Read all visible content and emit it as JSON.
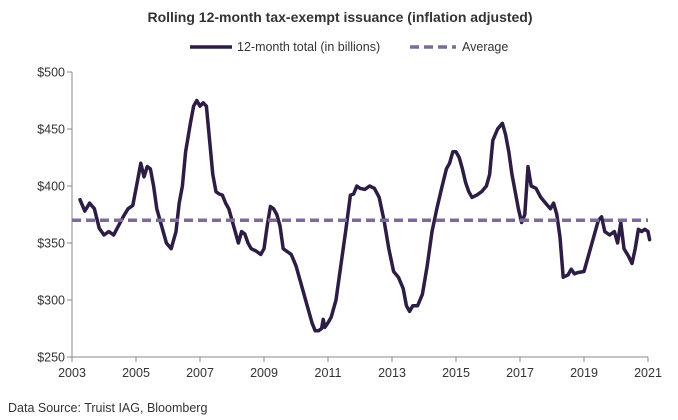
{
  "chart_data": {
    "type": "line",
    "title": "Rolling 12-month tax-exempt issuance (inflation adjusted)",
    "source": "Data Source: Truist IAG, Bloomberg",
    "xlabel": "",
    "ylabel": "",
    "xlim": [
      2003,
      2021
    ],
    "ylim": [
      250,
      500
    ],
    "x_ticks": [
      2003,
      2005,
      2007,
      2009,
      2011,
      2013,
      2015,
      2017,
      2019,
      2021
    ],
    "x_tick_labels": [
      "2003",
      "2005",
      "2007",
      "2009",
      "2011",
      "2013",
      "2015",
      "2017",
      "2019",
      "2021"
    ],
    "y_ticks": [
      250,
      300,
      350,
      400,
      450,
      500
    ],
    "y_tick_labels": [
      "$250",
      "$300",
      "$350",
      "$400",
      "$450",
      "$500"
    ],
    "grid": false,
    "legend_position": "top",
    "series": [
      {
        "name": "12-month total (in billions)",
        "color": "#2d1d45",
        "style": "solid",
        "points": [
          [
            2003.25,
            388
          ],
          [
            2003.4,
            378
          ],
          [
            2003.55,
            385
          ],
          [
            2003.7,
            380
          ],
          [
            2003.85,
            363
          ],
          [
            2004.0,
            357
          ],
          [
            2004.15,
            360
          ],
          [
            2004.3,
            357
          ],
          [
            2004.45,
            365
          ],
          [
            2004.6,
            373
          ],
          [
            2004.75,
            380
          ],
          [
            2004.9,
            383
          ],
          [
            2005.05,
            405
          ],
          [
            2005.15,
            420
          ],
          [
            2005.25,
            408
          ],
          [
            2005.35,
            417
          ],
          [
            2005.45,
            415
          ],
          [
            2005.55,
            400
          ],
          [
            2005.65,
            380
          ],
          [
            2005.75,
            370
          ],
          [
            2005.85,
            360
          ],
          [
            2005.95,
            350
          ],
          [
            2006.1,
            345
          ],
          [
            2006.25,
            360
          ],
          [
            2006.35,
            385
          ],
          [
            2006.45,
            400
          ],
          [
            2006.55,
            430
          ],
          [
            2006.7,
            455
          ],
          [
            2006.8,
            470
          ],
          [
            2006.9,
            475
          ],
          [
            2007.0,
            470
          ],
          [
            2007.1,
            473
          ],
          [
            2007.2,
            470
          ],
          [
            2007.3,
            440
          ],
          [
            2007.4,
            410
          ],
          [
            2007.5,
            395
          ],
          [
            2007.6,
            393
          ],
          [
            2007.7,
            392
          ],
          [
            2007.8,
            385
          ],
          [
            2007.9,
            380
          ],
          [
            2008.0,
            370
          ],
          [
            2008.1,
            360
          ],
          [
            2008.2,
            350
          ],
          [
            2008.3,
            360
          ],
          [
            2008.4,
            358
          ],
          [
            2008.5,
            350
          ],
          [
            2008.6,
            345
          ],
          [
            2008.75,
            343
          ],
          [
            2008.9,
            340
          ],
          [
            2009.0,
            345
          ],
          [
            2009.1,
            365
          ],
          [
            2009.2,
            382
          ],
          [
            2009.3,
            380
          ],
          [
            2009.4,
            375
          ],
          [
            2009.5,
            365
          ],
          [
            2009.6,
            345
          ],
          [
            2009.7,
            343
          ],
          [
            2009.85,
            340
          ],
          [
            2010.0,
            330
          ],
          [
            2010.15,
            315
          ],
          [
            2010.3,
            300
          ],
          [
            2010.4,
            290
          ],
          [
            2010.5,
            280
          ],
          [
            2010.6,
            273
          ],
          [
            2010.7,
            273
          ],
          [
            2010.8,
            275
          ],
          [
            2010.85,
            283
          ],
          [
            2010.9,
            276
          ],
          [
            2011.0,
            280
          ],
          [
            2011.1,
            285
          ],
          [
            2011.25,
            300
          ],
          [
            2011.4,
            330
          ],
          [
            2011.55,
            360
          ],
          [
            2011.7,
            392
          ],
          [
            2011.8,
            393
          ],
          [
            2011.9,
            400
          ],
          [
            2012.0,
            398
          ],
          [
            2012.15,
            397
          ],
          [
            2012.3,
            400
          ],
          [
            2012.45,
            398
          ],
          [
            2012.6,
            390
          ],
          [
            2012.75,
            370
          ],
          [
            2012.9,
            345
          ],
          [
            2013.05,
            325
          ],
          [
            2013.2,
            320
          ],
          [
            2013.35,
            310
          ],
          [
            2013.45,
            295
          ],
          [
            2013.55,
            290
          ],
          [
            2013.65,
            295
          ],
          [
            2013.8,
            295
          ],
          [
            2013.95,
            305
          ],
          [
            2014.1,
            330
          ],
          [
            2014.25,
            360
          ],
          [
            2014.4,
            380
          ],
          [
            2014.55,
            398
          ],
          [
            2014.7,
            415
          ],
          [
            2014.8,
            420
          ],
          [
            2014.9,
            430
          ],
          [
            2015.0,
            430
          ],
          [
            2015.1,
            425
          ],
          [
            2015.2,
            415
          ],
          [
            2015.3,
            403
          ],
          [
            2015.4,
            395
          ],
          [
            2015.5,
            390
          ],
          [
            2015.65,
            392
          ],
          [
            2015.8,
            395
          ],
          [
            2015.95,
            400
          ],
          [
            2016.05,
            410
          ],
          [
            2016.15,
            440
          ],
          [
            2016.3,
            450
          ],
          [
            2016.45,
            455
          ],
          [
            2016.55,
            445
          ],
          [
            2016.65,
            430
          ],
          [
            2016.75,
            410
          ],
          [
            2016.85,
            395
          ],
          [
            2016.95,
            380
          ],
          [
            2017.05,
            368
          ],
          [
            2017.15,
            375
          ],
          [
            2017.25,
            417
          ],
          [
            2017.35,
            400
          ],
          [
            2017.5,
            398
          ],
          [
            2017.65,
            390
          ],
          [
            2017.8,
            385
          ],
          [
            2017.95,
            380
          ],
          [
            2018.05,
            385
          ],
          [
            2018.15,
            375
          ],
          [
            2018.25,
            355
          ],
          [
            2018.35,
            320
          ],
          [
            2018.5,
            322
          ],
          [
            2018.6,
            327
          ],
          [
            2018.7,
            323
          ],
          [
            2018.8,
            324
          ],
          [
            2019.0,
            325
          ],
          [
            2019.15,
            340
          ],
          [
            2019.3,
            355
          ],
          [
            2019.45,
            370
          ],
          [
            2019.55,
            373
          ],
          [
            2019.65,
            360
          ],
          [
            2019.8,
            357
          ],
          [
            2019.95,
            360
          ],
          [
            2020.05,
            350
          ],
          [
            2020.15,
            368
          ],
          [
            2020.25,
            345
          ],
          [
            2020.4,
            338
          ],
          [
            2020.5,
            332
          ],
          [
            2020.6,
            345
          ],
          [
            2020.7,
            362
          ],
          [
            2020.8,
            360
          ],
          [
            2020.9,
            362
          ],
          [
            2021.0,
            360
          ],
          [
            2021.05,
            353
          ]
        ]
      },
      {
        "name": "Average",
        "color": "#7c6a98",
        "style": "dashed",
        "points": [
          [
            2003,
            370
          ],
          [
            2021,
            370
          ]
        ]
      }
    ]
  }
}
